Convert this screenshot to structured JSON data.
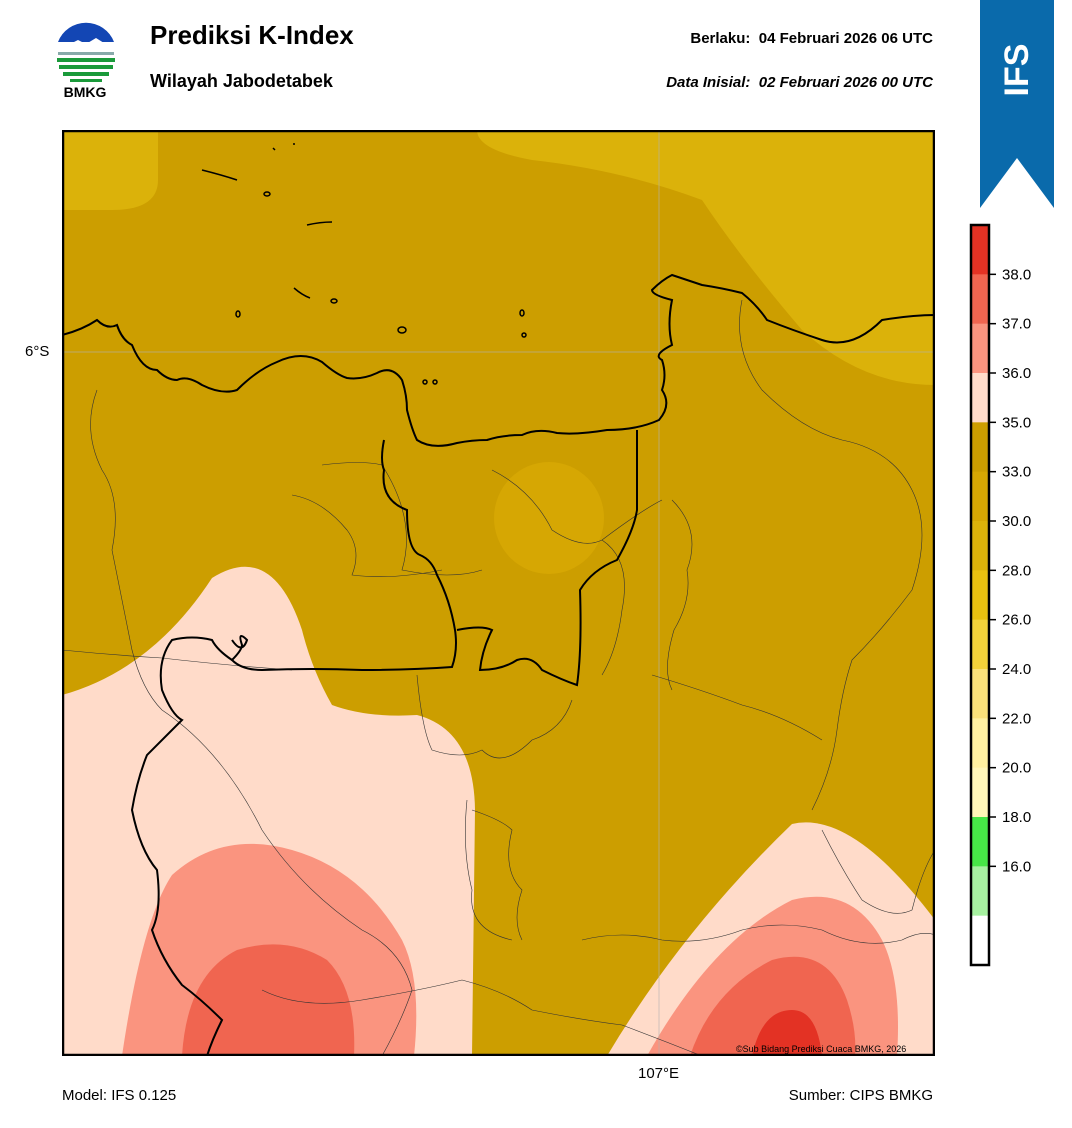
{
  "header": {
    "logo_text": "BMKG",
    "title": "Prediksi K-Index",
    "subtitle": "Wilayah Jabodetabek",
    "valid_label": "Berlaku:",
    "valid_time": "04 Februari 2026 06 UTC",
    "initial_label": "Data Inisial:",
    "initial_time": "02 Februari 2026 00 UTC"
  },
  "ribbon": {
    "text": "IFS",
    "color": "#0a6aab"
  },
  "map": {
    "lat_label": "6°S",
    "lon_label": "107°E",
    "copyright": "©Sub Bidang Prediksi Cuaca BMKG, 2026",
    "field_colors": {
      "lt35": "#cc9e00",
      "30_33": "#dbb20a",
      "35_36": "#ffdbc9",
      "36_37": "#fa947f",
      "37_38": "#f06550",
      "gt38": "#e33224"
    }
  },
  "colorbar": {
    "ticks": [
      "38.0",
      "37.0",
      "36.0",
      "35.0",
      "33.0",
      "30.0",
      "28.0",
      "26.0",
      "24.0",
      "22.0",
      "20.0",
      "18.0",
      "16.0"
    ],
    "bands": [
      "#e33224",
      "#f06550",
      "#fa947f",
      "#ffdbc9",
      "#cc9e00",
      "#d6a703",
      "#dbb20a",
      "#e8c010",
      "#f3d23a",
      "#fae17a",
      "#fff0a0",
      "#fff6b8",
      "#47e647",
      "#a6f0a0",
      "#ffffff"
    ]
  },
  "footer": {
    "model": "Model: IFS 0.125",
    "source": "Sumber: CIPS BMKG"
  }
}
